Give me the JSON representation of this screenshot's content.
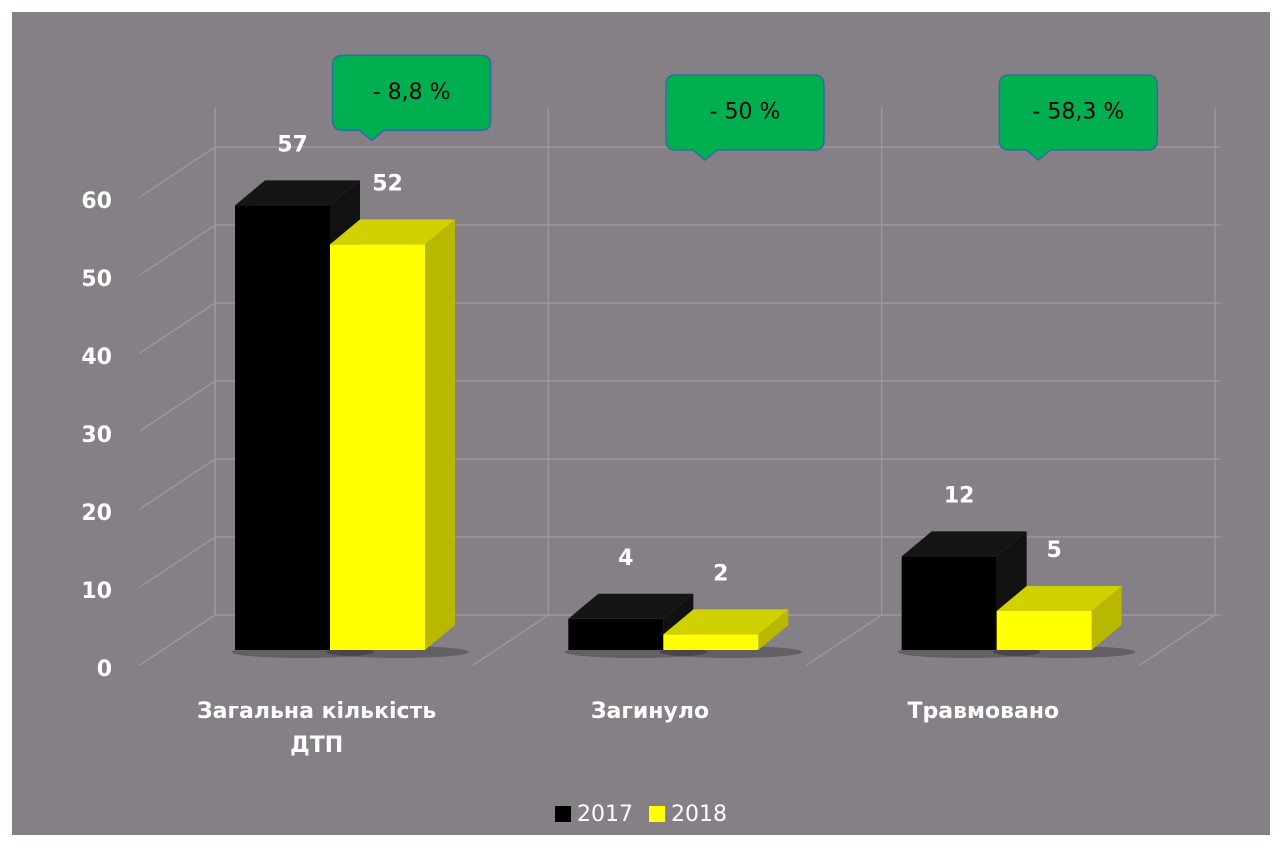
{
  "chart_data": {
    "type": "bar3d",
    "categories": [
      "Загальна кількість ДТП",
      "Загинуло",
      "Травмовано"
    ],
    "series": [
      {
        "name": "2017",
        "color": "#000000",
        "values": [
          57,
          4,
          12
        ]
      },
      {
        "name": "2018",
        "color": "#ffff00",
        "values": [
          52,
          2,
          5
        ]
      }
    ],
    "ylim": [
      0,
      65
    ],
    "yticks": [
      0,
      10,
      20,
      30,
      40,
      50,
      60
    ],
    "grid": true,
    "legend": "bottom",
    "annotations": [
      "- 8,8 %",
      "- 50 %",
      "- 58,3 %"
    ]
  }
}
